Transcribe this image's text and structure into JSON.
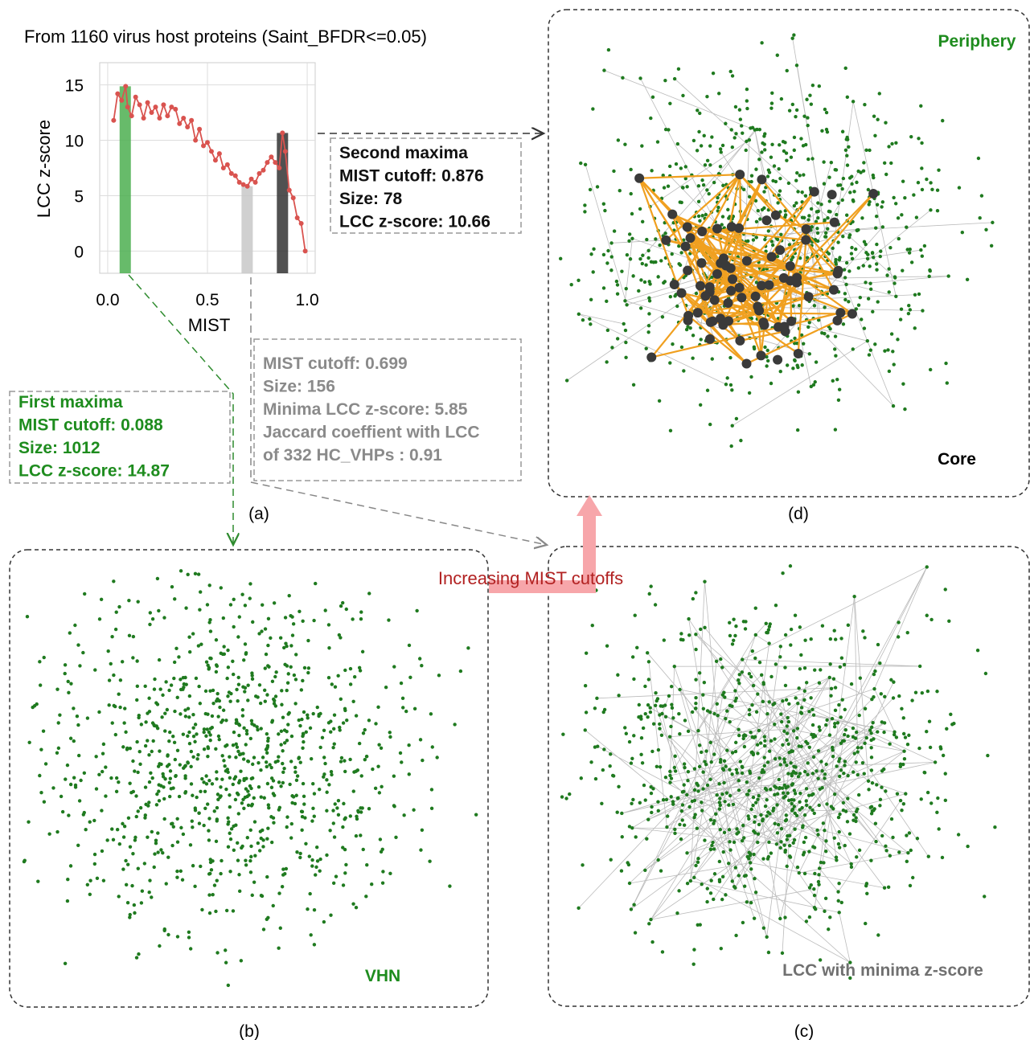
{
  "chart_data": {
    "type": "line",
    "title": "From 1160 virus host proteins (Saint_BFDR<=0.05)",
    "xlabel": "MIST",
    "ylabel": "LCC z-score",
    "x": [
      0.03,
      0.05,
      0.07,
      0.09,
      0.1,
      0.12,
      0.14,
      0.16,
      0.18,
      0.2,
      0.22,
      0.24,
      0.26,
      0.28,
      0.3,
      0.32,
      0.34,
      0.36,
      0.38,
      0.4,
      0.42,
      0.44,
      0.46,
      0.48,
      0.5,
      0.52,
      0.54,
      0.56,
      0.58,
      0.6,
      0.62,
      0.64,
      0.66,
      0.68,
      0.7,
      0.72,
      0.74,
      0.76,
      0.78,
      0.8,
      0.82,
      0.84,
      0.86,
      0.876,
      0.89,
      0.91,
      0.93,
      0.95,
      0.97,
      0.99
    ],
    "values": [
      11.8,
      14.2,
      13.6,
      14.87,
      13.0,
      12.2,
      13.9,
      13.2,
      12.0,
      13.4,
      12.5,
      13.0,
      12.0,
      13.2,
      12.2,
      13.0,
      12.8,
      11.5,
      12.0,
      11.2,
      11.8,
      10.0,
      11.0,
      9.5,
      9.8,
      9.0,
      8.2,
      8.8,
      7.5,
      7.8,
      7.0,
      6.8,
      6.2,
      6.0,
      5.85,
      6.5,
      6.2,
      7.0,
      7.3,
      8.0,
      8.5,
      8.0,
      7.5,
      10.66,
      9.0,
      5.5,
      4.8,
      3.0,
      2.5,
      0.0
    ],
    "color": "#d9534f",
    "xlim": [
      -0.04,
      1.04
    ],
    "ylim": [
      -2,
      17
    ],
    "xticks": [
      {
        "value": 0,
        "label": "0.0"
      },
      0.5,
      {
        "value": 1,
        "label": "1.0"
      }
    ],
    "yticks": [
      0,
      5,
      10,
      15
    ],
    "grid": true,
    "highlights": [
      {
        "x": 0.088,
        "value": 14.87,
        "color": "#4caf50"
      },
      {
        "x": 0.699,
        "value": 5.85,
        "color": "#c8c8c8"
      },
      {
        "x": 0.876,
        "value": 10.66,
        "color": "#333333"
      }
    ]
  },
  "annotations": {
    "second_maxima": [
      "Second maxima",
      "MIST cutoff: 0.876",
      "Size: 78",
      "LCC z-score: 10.66"
    ],
    "minima": [
      "MIST cutoff: 0.699",
      "Size: 156",
      "Minima LCC z-score: 5.85",
      "Jaccard coeffient with LCC",
      "of 332 HC_VHPs : 0.91"
    ],
    "first_maxima": [
      "First maxima",
      "MIST cutoff: 0.088",
      "Size: 1012",
      "LCC z-score: 14.87"
    ],
    "arrow": "Increasing MIST cutoffs"
  },
  "panels": {
    "a": "(a)",
    "b": {
      "caption": "(b)",
      "label": "VHN"
    },
    "c": {
      "caption": "(c)",
      "label": "LCC with minima z-score"
    },
    "d": {
      "caption": "(d)",
      "label_top": "Periphery",
      "label_bottom": "Core"
    }
  }
}
